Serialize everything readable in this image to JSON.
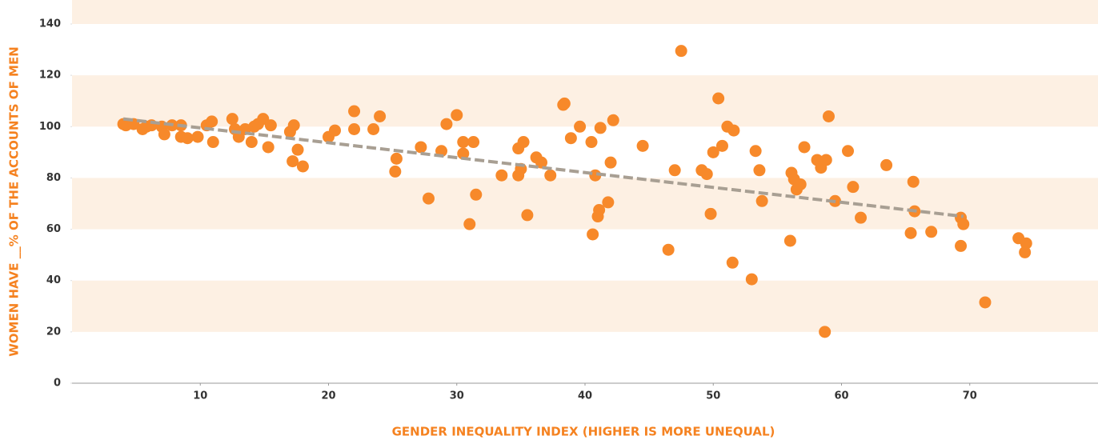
{
  "chart_data": {
    "type": "scatter",
    "xlabel": "GENDER INEQUALITY INDEX (HIGHER IS MORE UNEQUAL)",
    "ylabel": "WOMEN HAVE __% OF THE ACCOUNTS OF MEN",
    "color": "#f7892a",
    "trend_color": "#a89f93",
    "xlim": [
      0,
      80
    ],
    "ylim": [
      0,
      140
    ],
    "xticks": [
      10,
      20,
      30,
      40,
      50,
      60,
      70
    ],
    "yticks": [
      0,
      20,
      40,
      60,
      80,
      100,
      120,
      140
    ],
    "x": [
      4,
      4.2,
      4.8,
      5.5,
      5.8,
      6.2,
      7,
      7.2,
      7.8,
      8.5,
      8.5,
      9,
      9.8,
      10.5,
      10.9,
      11,
      12.5,
      12.7,
      13,
      13.5,
      14,
      14.2,
      14.5,
      14.9,
      15.3,
      15.5,
      17,
      17.3,
      17.2,
      17.6,
      18,
      20,
      20.5,
      22,
      22,
      23.5,
      24,
      25.2,
      25.3,
      27.2,
      27.8,
      28.8,
      29.2,
      30,
      30.5,
      30.5,
      31,
      31.3,
      31.5,
      33.5,
      34.8,
      34.8,
      35,
      35.2,
      35.5,
      36.2,
      36.6,
      37.3,
      38.3,
      38.4,
      38.9,
      39.6,
      40.5,
      40.6,
      40.8,
      41,
      41.1,
      41.2,
      41.8,
      42,
      42.2,
      44.5,
      46.5,
      47,
      47.5,
      49.1,
      49.5,
      49.8,
      50,
      50.4,
      50.7,
      51.1,
      51.6,
      51.5,
      53,
      53.3,
      53.6,
      53.8,
      56,
      56.1,
      56.3,
      56.5,
      56.8,
      57.1,
      58.1,
      58.4,
      58.7,
      58.8,
      59,
      59.5,
      60.5,
      60.9,
      61.5,
      63.5,
      65.4,
      65.6,
      65.7,
      67,
      69.3,
      69.3,
      69.5,
      71.2,
      73.8,
      74.3,
      74.4
    ],
    "y": [
      101,
      100.5,
      101,
      99,
      100,
      100.5,
      100,
      97,
      100.5,
      100.5,
      96,
      95.5,
      96,
      100.5,
      102,
      94,
      103,
      99,
      96,
      99,
      94,
      100,
      101,
      103,
      92,
      100.5,
      98,
      100.5,
      86.5,
      91,
      84.5,
      96,
      98.5,
      106,
      99,
      99,
      104,
      82.5,
      87.5,
      92,
      72,
      90.5,
      101,
      104.5,
      94,
      89.5,
      62,
      94,
      73.5,
      81,
      91.5,
      81,
      83.5,
      94,
      65.5,
      88,
      86,
      81,
      108.5,
      109,
      95.5,
      100,
      94,
      58,
      81,
      65,
      67.5,
      99.5,
      70.5,
      86,
      102.5,
      92.5,
      52,
      83,
      129.5,
      83,
      81.5,
      66,
      90,
      111,
      92.5,
      100,
      98.5,
      47,
      40.5,
      90.5,
      83,
      71,
      55.5,
      82,
      79.5,
      75.5,
      77.5,
      92,
      87,
      84,
      20,
      87,
      104,
      71,
      90.5,
      76.5,
      64.5,
      85,
      58.5,
      78.5,
      67,
      59,
      53.5,
      64.5,
      62,
      31.5,
      56.5,
      51,
      54.5
    ],
    "trend": {
      "x": [
        4,
        69.5
      ],
      "y": [
        103,
        65
      ]
    }
  }
}
